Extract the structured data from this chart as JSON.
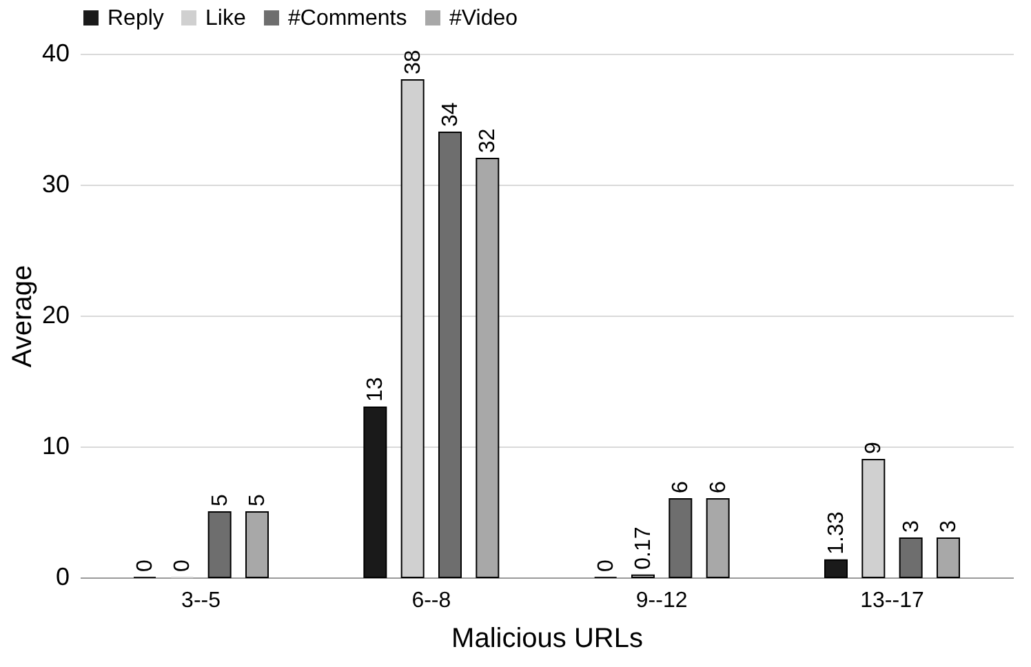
{
  "chart_data": {
    "type": "bar",
    "xlabel": "Malicious URLs",
    "ylabel": "Average",
    "categories": [
      "3--5",
      "6--8",
      "9--12",
      "13--17"
    ],
    "series": [
      {
        "name": "Reply",
        "color": "#1a1a1a",
        "values": [
          0,
          13,
          0,
          1.33
        ]
      },
      {
        "name": "Like",
        "color": "#d0d0d0",
        "values": [
          0,
          38,
          0.17,
          9
        ]
      },
      {
        "name": "#Comments",
        "color": "#6e6e6e",
        "values": [
          5,
          34,
          6,
          3
        ]
      },
      {
        "name": "#Video",
        "color": "#a8a8a8",
        "values": [
          5,
          32,
          6,
          3
        ]
      }
    ],
    "ylim": [
      0,
      40
    ],
    "yticks": [
      0,
      10,
      20,
      30,
      40
    ],
    "grid": "y",
    "legend": "top",
    "data_labels": true
  }
}
